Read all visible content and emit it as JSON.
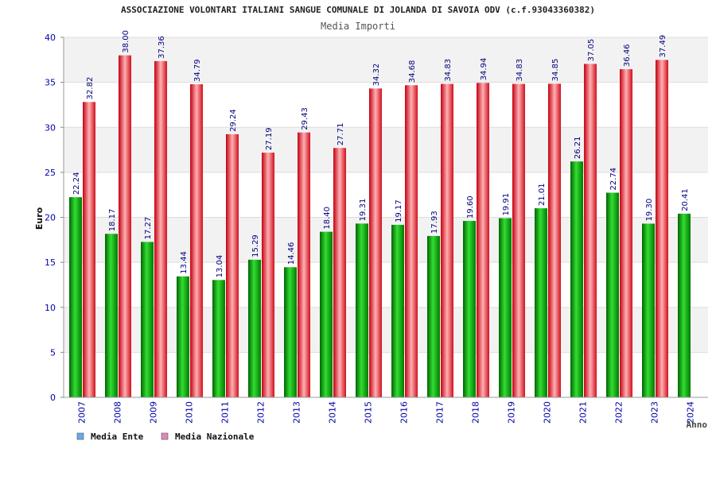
{
  "chart_data": {
    "type": "bar",
    "title": "ASSOCIAZIONE VOLONTARI ITALIANI SANGUE COMUNALE DI JOLANDA DI SAVOIA ODV (c.f.93043360382)",
    "subtitle": "Media Importi",
    "ylabel": "Euro",
    "xlabel": "Anno",
    "ylim": [
      0,
      40
    ],
    "yticks": [
      0,
      5,
      10,
      15,
      20,
      25,
      30,
      35,
      40
    ],
    "grid": true,
    "legend_position": "bottom-left",
    "categories": [
      "2007",
      "2008",
      "2009",
      "2010",
      "2011",
      "2012",
      "2013",
      "2014",
      "2015",
      "2016",
      "2017",
      "2018",
      "2019",
      "2020",
      "2021",
      "2022",
      "2023",
      "2024"
    ],
    "series": [
      {
        "name": "Media Ente",
        "values": [
          22.24,
          18.17,
          17.27,
          13.44,
          13.04,
          15.29,
          14.46,
          18.4,
          19.31,
          19.17,
          17.93,
          19.6,
          19.91,
          21.01,
          26.21,
          22.74,
          19.3,
          20.41
        ],
        "labels": [
          "22.24",
          "18.17",
          "17.27",
          "13.44",
          "13.04",
          "15.29",
          "14.46",
          "18.40",
          "19.31",
          "19.17",
          "17.93",
          "19.60",
          "19.91",
          "21.01",
          "26.21",
          "22.74",
          "19.30",
          "20.41"
        ],
        "bar_color": "#00b400",
        "legend_color": "#66aaee"
      },
      {
        "name": "Media Nazionale",
        "values": [
          32.82,
          38.0,
          37.36,
          34.79,
          29.24,
          27.19,
          29.43,
          27.71,
          34.32,
          34.68,
          34.83,
          34.94,
          34.83,
          34.85,
          37.05,
          36.46,
          37.49,
          null
        ],
        "labels": [
          "32.82",
          "38.00",
          "37.36",
          "34.79",
          "29.24",
          "27.19",
          "29.43",
          "27.71",
          "34.32",
          "34.68",
          "34.83",
          "34.94",
          "34.83",
          "34.85",
          "37.05",
          "36.46",
          "37.49",
          ""
        ],
        "bar_color": "#ee1c24",
        "legend_color": "#dd88bb"
      }
    ],
    "colors": {
      "axis_text": "#0000aa",
      "value_label": "#000080",
      "band": "#f2f2f2"
    }
  }
}
